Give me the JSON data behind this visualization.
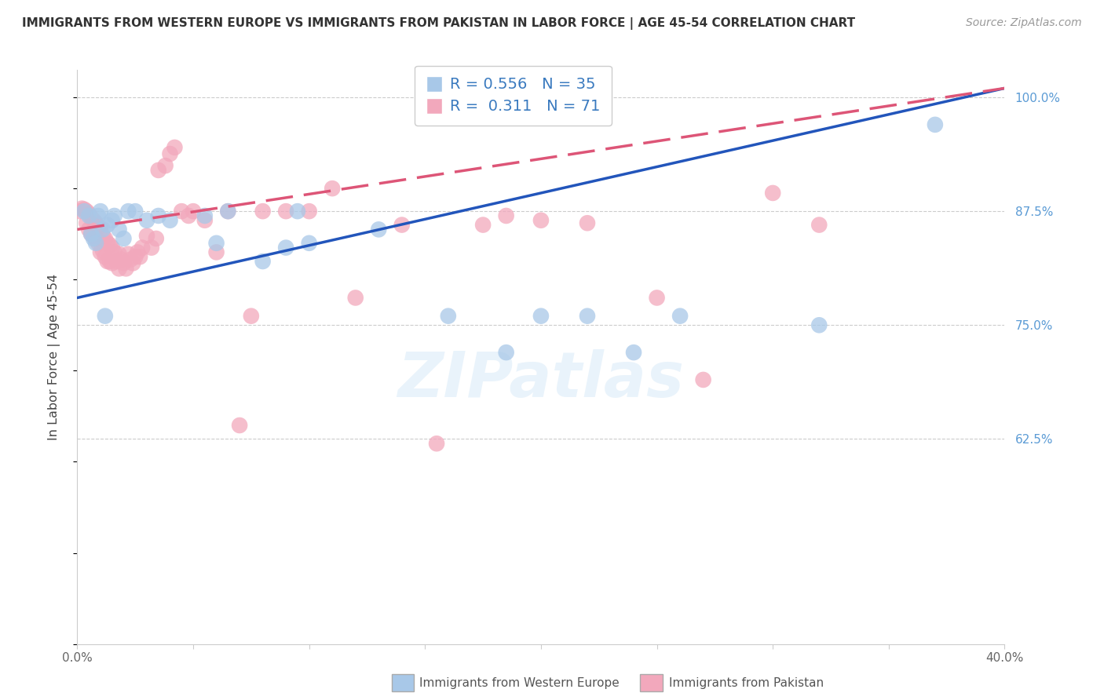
{
  "title": "IMMIGRANTS FROM WESTERN EUROPE VS IMMIGRANTS FROM PAKISTAN IN LABOR FORCE | AGE 45-54 CORRELATION CHART",
  "source": "Source: ZipAtlas.com",
  "ylabel": "In Labor Force | Age 45-54",
  "xlim_min": 0.0,
  "xlim_max": 0.4,
  "ylim_min": 0.4,
  "ylim_max": 1.03,
  "blue_R": 0.556,
  "blue_N": 35,
  "pink_R": 0.311,
  "pink_N": 71,
  "blue_color": "#a8c8e8",
  "pink_color": "#f2a8bc",
  "blue_line_color": "#2255bb",
  "pink_line_color": "#dd5577",
  "grid_color": "#cccccc",
  "ytick_color": "#5b9bd5",
  "xtick_color": "#666666",
  "legend_blue_label": "Immigrants from Western Europe",
  "legend_pink_label": "Immigrants from Pakistan",
  "blue_line_x0": 0.0,
  "blue_line_y0": 0.78,
  "blue_line_x1": 0.4,
  "blue_line_y1": 1.01,
  "pink_line_x0": 0.0,
  "pink_line_y0": 0.855,
  "pink_line_x1": 0.4,
  "pink_line_y1": 1.01,
  "blue_x": [
    0.003,
    0.005,
    0.006,
    0.007,
    0.008,
    0.009,
    0.01,
    0.011,
    0.012,
    0.013,
    0.015,
    0.016,
    0.018,
    0.02,
    0.022,
    0.025,
    0.03,
    0.035,
    0.04,
    0.055,
    0.06,
    0.065,
    0.08,
    0.09,
    0.095,
    0.1,
    0.13,
    0.16,
    0.185,
    0.2,
    0.22,
    0.24,
    0.26,
    0.32,
    0.37
  ],
  "blue_y": [
    0.875,
    0.87,
    0.85,
    0.845,
    0.84,
    0.87,
    0.875,
    0.855,
    0.76,
    0.86,
    0.865,
    0.87,
    0.855,
    0.845,
    0.875,
    0.875,
    0.865,
    0.87,
    0.865,
    0.87,
    0.84,
    0.875,
    0.82,
    0.835,
    0.875,
    0.84,
    0.855,
    0.76,
    0.72,
    0.76,
    0.76,
    0.72,
    0.76,
    0.75,
    0.97
  ],
  "pink_x": [
    0.001,
    0.002,
    0.003,
    0.004,
    0.004,
    0.005,
    0.005,
    0.006,
    0.006,
    0.007,
    0.007,
    0.008,
    0.008,
    0.009,
    0.009,
    0.01,
    0.01,
    0.011,
    0.011,
    0.012,
    0.012,
    0.013,
    0.013,
    0.014,
    0.014,
    0.015,
    0.015,
    0.016,
    0.017,
    0.018,
    0.018,
    0.019,
    0.02,
    0.021,
    0.022,
    0.023,
    0.024,
    0.025,
    0.026,
    0.027,
    0.028,
    0.03,
    0.032,
    0.034,
    0.035,
    0.038,
    0.04,
    0.042,
    0.045,
    0.048,
    0.05,
    0.055,
    0.06,
    0.065,
    0.07,
    0.075,
    0.08,
    0.09,
    0.1,
    0.11,
    0.12,
    0.14,
    0.155,
    0.175,
    0.185,
    0.2,
    0.22,
    0.25,
    0.27,
    0.3,
    0.32
  ],
  "pink_y": [
    0.875,
    0.878,
    0.877,
    0.875,
    0.862,
    0.872,
    0.855,
    0.868,
    0.85,
    0.865,
    0.848,
    0.862,
    0.845,
    0.858,
    0.84,
    0.855,
    0.83,
    0.848,
    0.832,
    0.845,
    0.825,
    0.84,
    0.82,
    0.838,
    0.82,
    0.835,
    0.818,
    0.83,
    0.82,
    0.828,
    0.812,
    0.822,
    0.818,
    0.812,
    0.828,
    0.822,
    0.818,
    0.825,
    0.83,
    0.825,
    0.835,
    0.848,
    0.835,
    0.845,
    0.92,
    0.925,
    0.938,
    0.945,
    0.875,
    0.87,
    0.875,
    0.865,
    0.83,
    0.875,
    0.64,
    0.76,
    0.875,
    0.875,
    0.875,
    0.9,
    0.78,
    0.86,
    0.62,
    0.86,
    0.87,
    0.865,
    0.862,
    0.78,
    0.69,
    0.895,
    0.86
  ]
}
